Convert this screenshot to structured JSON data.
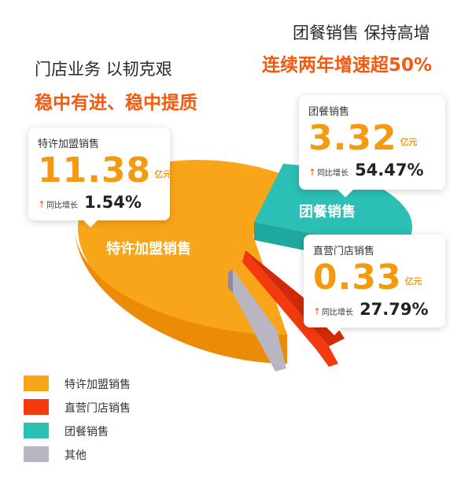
{
  "headlines": {
    "left_title": "门店业务 以韧克艰",
    "left_subtitle": "稳中有进、稳中提质",
    "right_title": "团餐销售 保持高增",
    "right_subtitle": "连续两年增速超50%"
  },
  "cards": {
    "franchise": {
      "label": "特许加盟销售",
      "value": "11.38",
      "unit": "亿元",
      "growth_label": "同比增长",
      "growth": "1.54%"
    },
    "group_meal": {
      "label": "团餐销售",
      "value": "3.32",
      "unit": "亿元",
      "growth_label": "同比增长",
      "growth": "54.47%"
    },
    "direct": {
      "label": "直营门店销售",
      "value": "0.33",
      "unit": "亿元",
      "growth_label": "同比增长",
      "growth": "27.79%"
    }
  },
  "slice_labels": {
    "franchise": "特许加盟销售",
    "group_meal": "团餐销售"
  },
  "chart_data": {
    "type": "pie",
    "unit": "亿元",
    "slices": [
      {
        "key": "franchise",
        "name": "特许加盟销售",
        "value": 11.38,
        "growth": "1.54%",
        "color": "#f9a51a"
      },
      {
        "key": "direct",
        "name": "直营门店销售",
        "value": 0.33,
        "growth": "27.79%",
        "color": "#f23a0e"
      },
      {
        "key": "group_meal",
        "name": "团餐销售",
        "value": 3.32,
        "growth": "54.47%",
        "color": "#2bbfb5"
      },
      {
        "key": "other",
        "name": "其他",
        "value": null,
        "color": "#b9b6c4"
      }
    ],
    "legend": [
      {
        "name": "特许加盟销售",
        "color": "#f9a51a"
      },
      {
        "name": "直营门店销售",
        "color": "#f23a0e"
      },
      {
        "name": "团餐销售",
        "color": "#2bbfb5"
      },
      {
        "name": "其他",
        "color": "#b9b6c4"
      }
    ],
    "legend_position": "bottom-left"
  }
}
